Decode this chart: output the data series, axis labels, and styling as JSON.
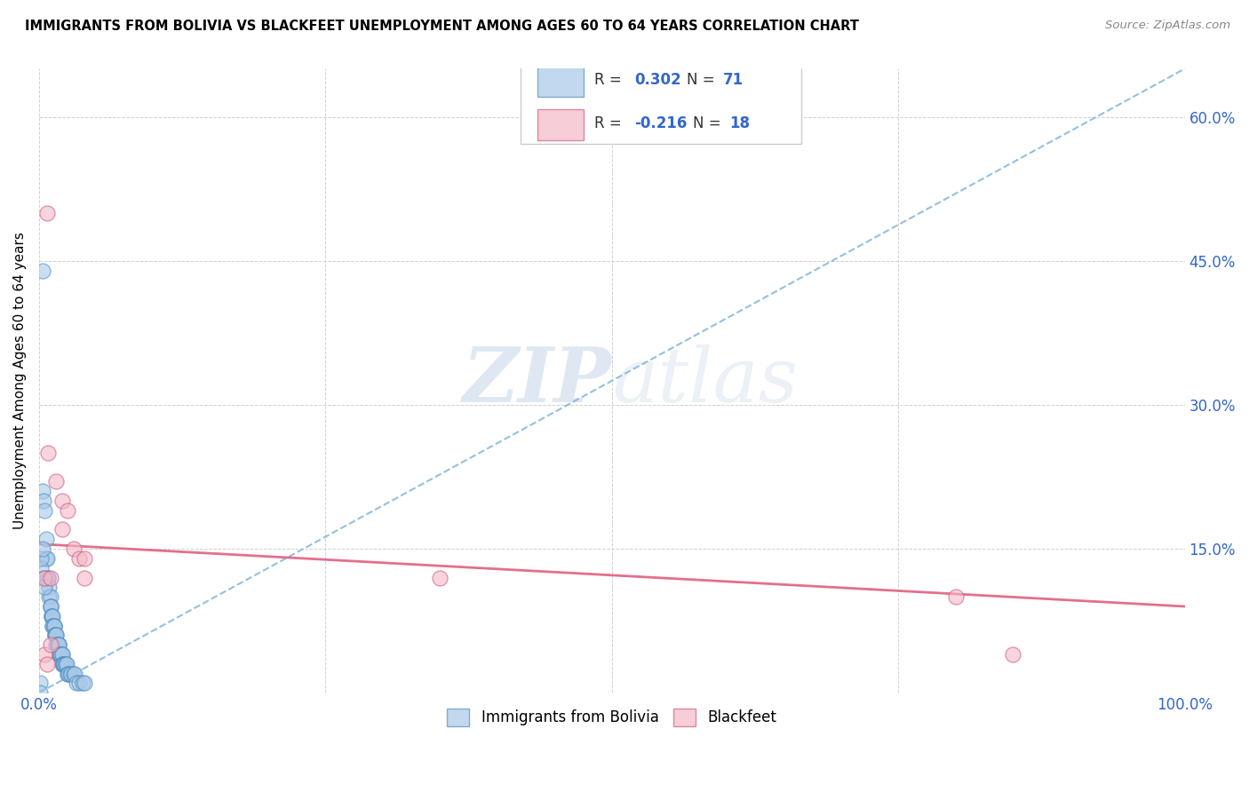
{
  "title": "IMMIGRANTS FROM BOLIVIA VS BLACKFEET UNEMPLOYMENT AMONG AGES 60 TO 64 YEARS CORRELATION CHART",
  "source": "Source: ZipAtlas.com",
  "ylabel": "Unemployment Among Ages 60 to 64 years",
  "xlim": [
    0,
    1.0
  ],
  "ylim": [
    0,
    0.65
  ],
  "xticks": [
    0.0,
    0.25,
    0.5,
    0.75,
    1.0
  ],
  "xticklabels": [
    "0.0%",
    "",
    "",
    "",
    "100.0%"
  ],
  "yticks": [
    0.0,
    0.15,
    0.3,
    0.45,
    0.6
  ],
  "yticklabels": [
    "",
    "15.0%",
    "30.0%",
    "45.0%",
    "60.0%"
  ],
  "blue_color": "#a8c8e8",
  "pink_color": "#f4b8c8",
  "blue_edge_color": "#5590c0",
  "pink_edge_color": "#d06080",
  "blue_line_color": "#7ab0d8",
  "pink_line_color": "#e06080",
  "R_blue": 0.302,
  "N_blue": 71,
  "R_pink": -0.216,
  "N_pink": 18,
  "watermark_zip": "ZIP",
  "watermark_atlas": "atlas",
  "legend_label_blue": "Immigrants from Bolivia",
  "legend_label_pink": "Blackfeet",
  "blue_trend_x0": 0.0,
  "blue_trend_y0": 0.0,
  "blue_trend_x1": 1.0,
  "blue_trend_y1": 0.65,
  "pink_trend_x0": 0.0,
  "pink_trend_y0": 0.155,
  "pink_trend_x1": 1.0,
  "pink_trend_y1": 0.09,
  "blue_scatter_x": [
    0.003,
    0.003,
    0.004,
    0.005,
    0.006,
    0.006,
    0.007,
    0.007,
    0.008,
    0.008,
    0.009,
    0.009,
    0.01,
    0.01,
    0.01,
    0.01,
    0.011,
    0.011,
    0.011,
    0.012,
    0.012,
    0.012,
    0.013,
    0.013,
    0.013,
    0.014,
    0.014,
    0.014,
    0.015,
    0.015,
    0.015,
    0.016,
    0.016,
    0.016,
    0.017,
    0.017,
    0.017,
    0.018,
    0.018,
    0.018,
    0.019,
    0.019,
    0.019,
    0.02,
    0.02,
    0.02,
    0.021,
    0.021,
    0.022,
    0.022,
    0.023,
    0.023,
    0.024,
    0.025,
    0.025,
    0.026,
    0.027,
    0.028,
    0.03,
    0.031,
    0.033,
    0.035,
    0.038,
    0.04,
    0.002,
    0.002,
    0.003,
    0.004,
    0.005,
    0.001,
    0.001
  ],
  "blue_scatter_y": [
    0.44,
    0.21,
    0.2,
    0.19,
    0.16,
    0.14,
    0.14,
    0.12,
    0.12,
    0.12,
    0.11,
    0.1,
    0.1,
    0.09,
    0.09,
    0.09,
    0.08,
    0.08,
    0.08,
    0.08,
    0.07,
    0.07,
    0.07,
    0.07,
    0.07,
    0.06,
    0.06,
    0.06,
    0.06,
    0.06,
    0.05,
    0.05,
    0.05,
    0.05,
    0.05,
    0.05,
    0.05,
    0.04,
    0.04,
    0.04,
    0.04,
    0.04,
    0.04,
    0.04,
    0.04,
    0.03,
    0.03,
    0.03,
    0.03,
    0.03,
    0.03,
    0.03,
    0.03,
    0.02,
    0.02,
    0.02,
    0.02,
    0.02,
    0.02,
    0.02,
    0.01,
    0.01,
    0.01,
    0.01,
    0.13,
    0.14,
    0.15,
    0.12,
    0.11,
    0.01,
    0.0
  ],
  "pink_scatter_x": [
    0.007,
    0.008,
    0.015,
    0.02,
    0.02,
    0.025,
    0.03,
    0.035,
    0.04,
    0.04,
    0.005,
    0.005,
    0.01,
    0.01,
    0.35,
    0.8,
    0.85,
    0.007
  ],
  "pink_scatter_y": [
    0.5,
    0.25,
    0.22,
    0.2,
    0.17,
    0.19,
    0.15,
    0.14,
    0.14,
    0.12,
    0.12,
    0.04,
    0.12,
    0.05,
    0.12,
    0.1,
    0.04,
    0.03
  ]
}
